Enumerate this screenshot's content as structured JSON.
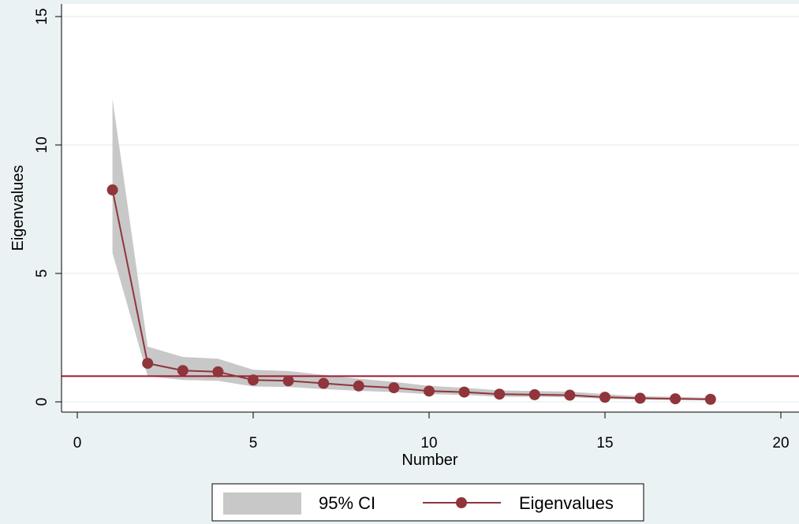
{
  "chart_data": {
    "type": "line",
    "title": "",
    "xlabel": "Number",
    "ylabel": "Eigenvalues",
    "xlim": [
      0,
      20
    ],
    "ylim": [
      0,
      15
    ],
    "x_ticks": [
      "0",
      "5",
      "10",
      "15",
      "20"
    ],
    "y_ticks": [
      "0",
      "5",
      "10",
      "15"
    ],
    "grid": "horizontal",
    "reference_line": {
      "y": 1,
      "color": "#9b1b30"
    },
    "x": [
      1,
      2,
      3,
      4,
      5,
      6,
      7,
      8,
      9,
      10,
      11,
      12,
      13,
      14,
      15,
      16,
      17,
      18
    ],
    "series": [
      {
        "name": "Eigenvalues",
        "type": "line-marker",
        "color": "#90353b",
        "values": [
          8.25,
          1.5,
          1.22,
          1.17,
          0.85,
          0.82,
          0.72,
          0.62,
          0.55,
          0.42,
          0.38,
          0.3,
          0.28,
          0.26,
          0.18,
          0.14,
          0.12,
          0.1
        ]
      },
      {
        "name": "95% CI",
        "type": "band",
        "color": "#c8c8c8",
        "lower": [
          5.8,
          1.0,
          0.85,
          0.82,
          0.6,
          0.58,
          0.5,
          0.43,
          0.38,
          0.3,
          0.27,
          0.2,
          0.19,
          0.18,
          0.12,
          0.09,
          0.08,
          0.06
        ],
        "upper": [
          11.8,
          2.15,
          1.75,
          1.68,
          1.25,
          1.2,
          1.05,
          0.9,
          0.78,
          0.62,
          0.55,
          0.45,
          0.42,
          0.4,
          0.3,
          0.22,
          0.2,
          0.16
        ]
      }
    ],
    "legend": {
      "placement": "bottom",
      "entries": [
        {
          "label": "95% CI",
          "kind": "band"
        },
        {
          "label": "Eigenvalues",
          "kind": "line-marker"
        }
      ]
    }
  }
}
